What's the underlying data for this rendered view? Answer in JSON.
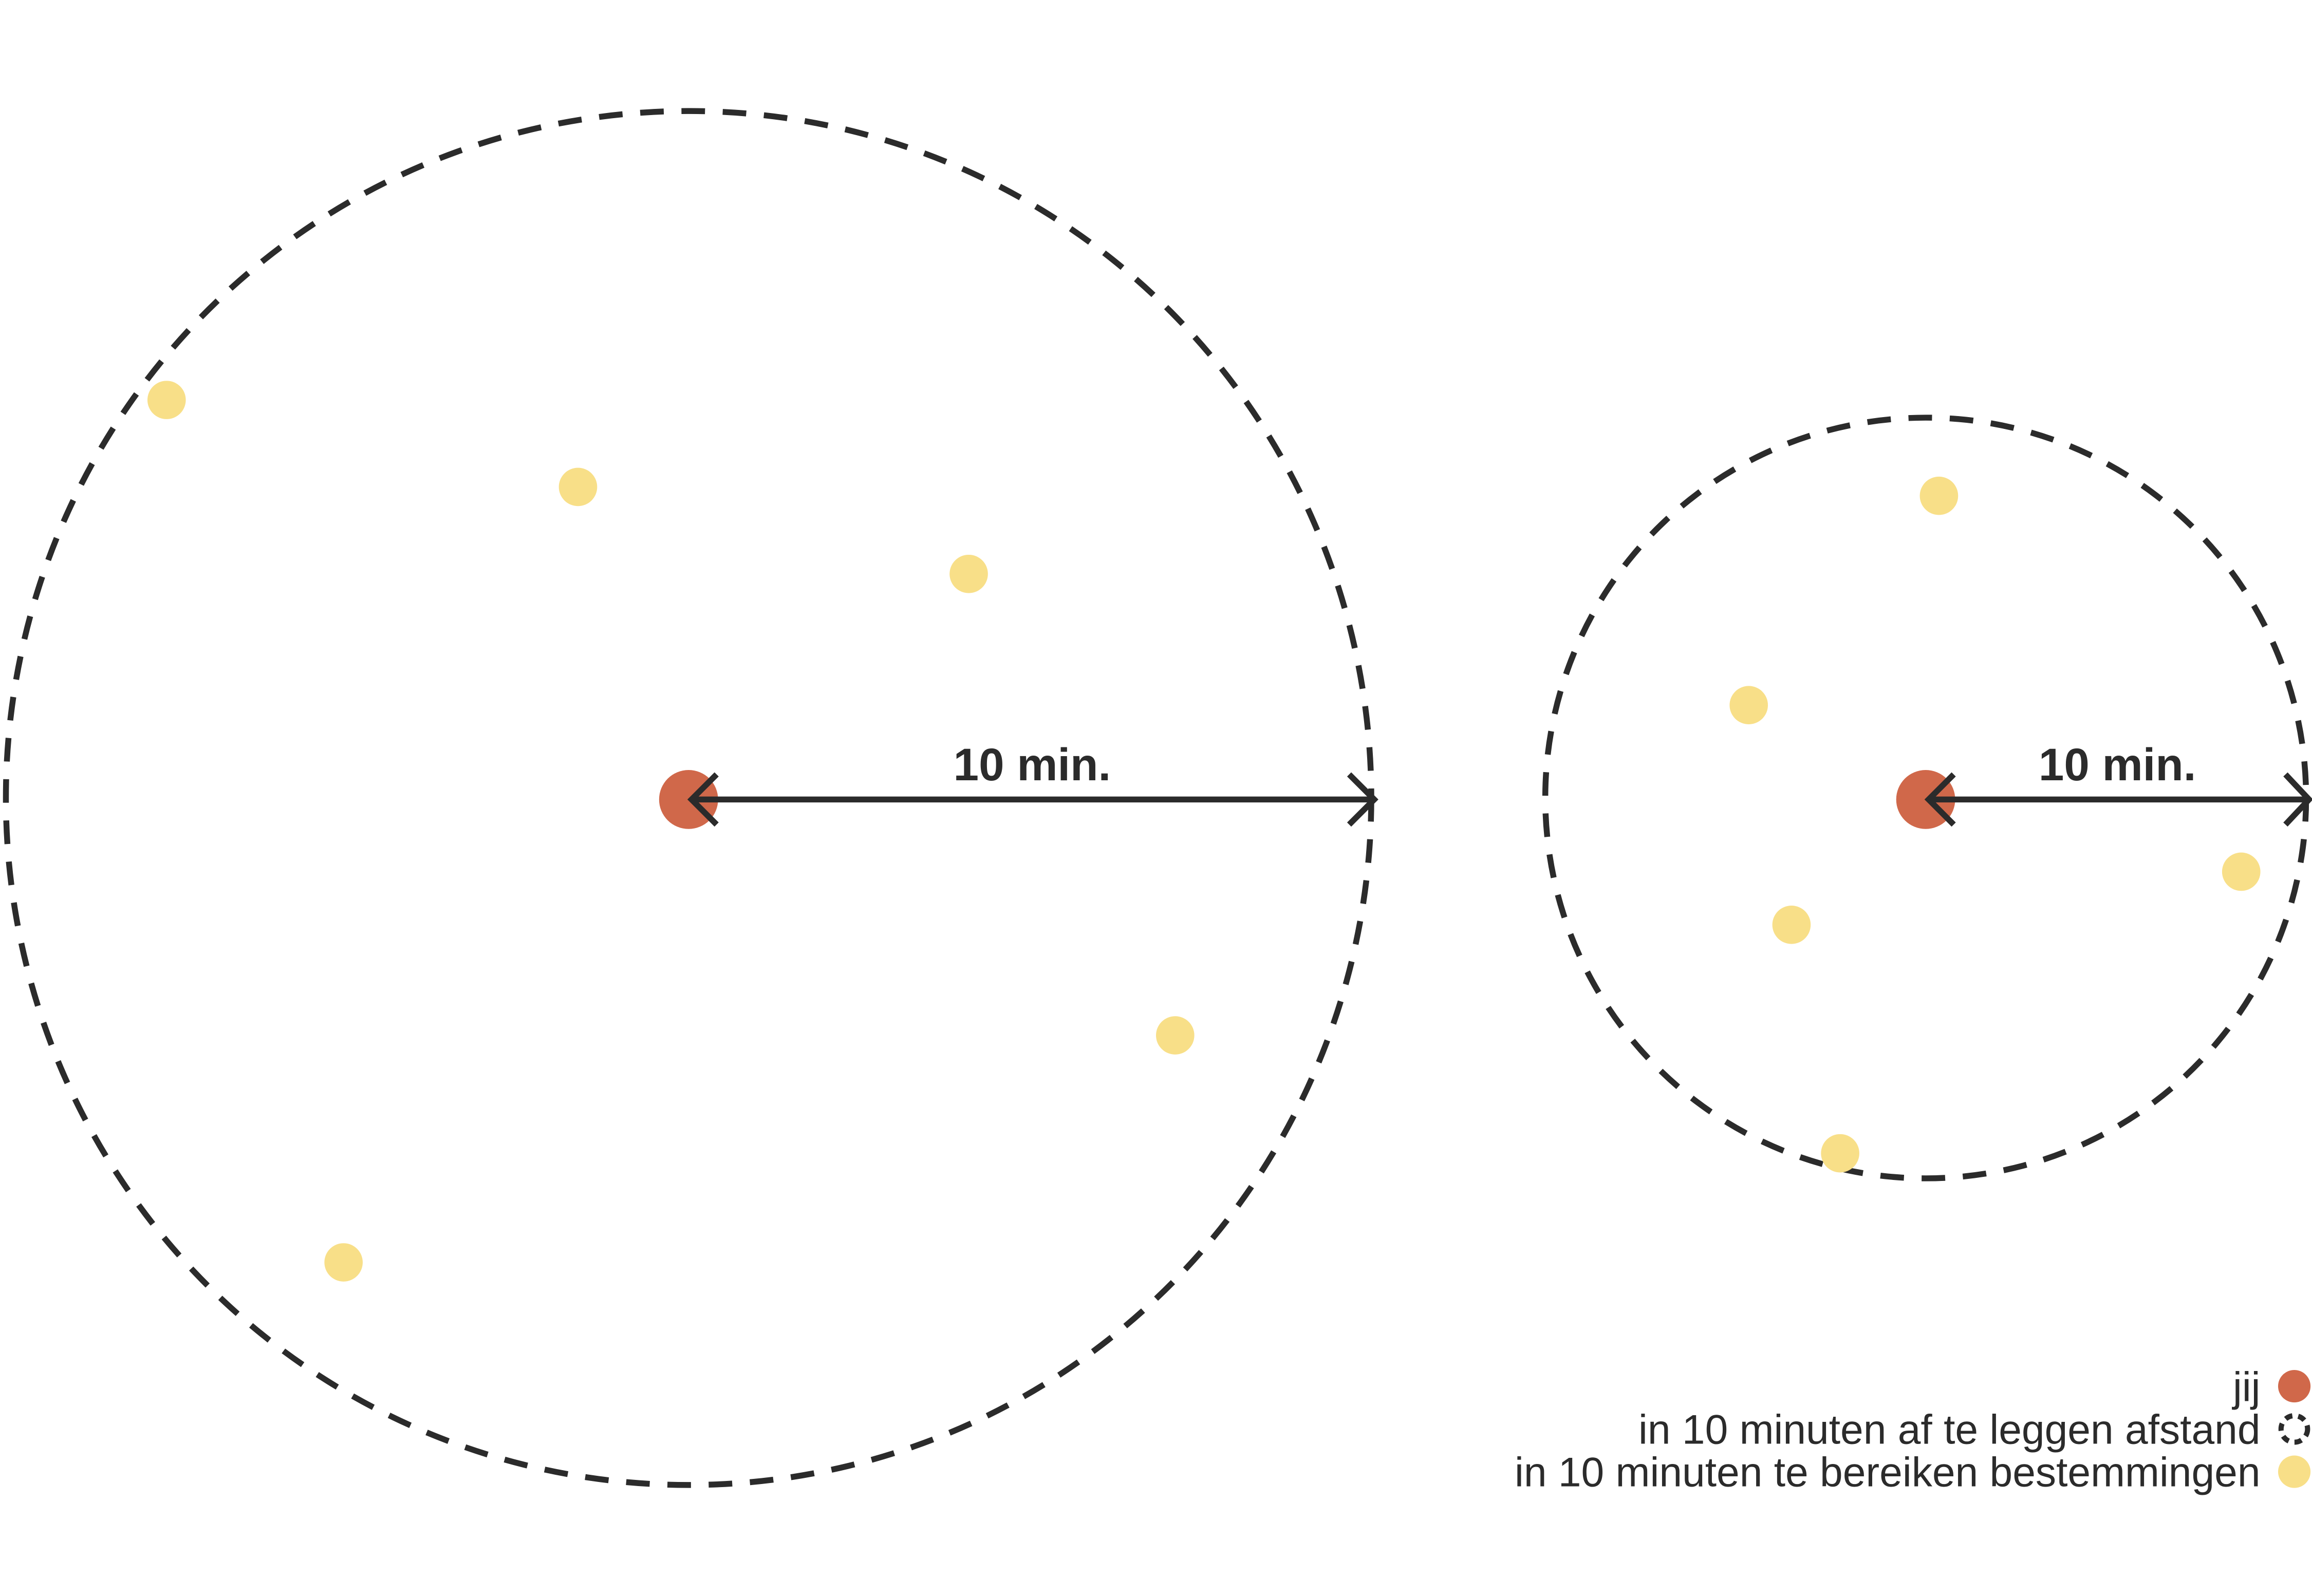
{
  "panels": [
    {
      "label": "10 min."
    },
    {
      "label": "10 min."
    }
  ],
  "legend": [
    {
      "label": "jij"
    },
    {
      "label": "in 10 minuten af te leggen afstand"
    },
    {
      "label": "in 10 minuten te bereiken bestemmingen"
    }
  ]
}
